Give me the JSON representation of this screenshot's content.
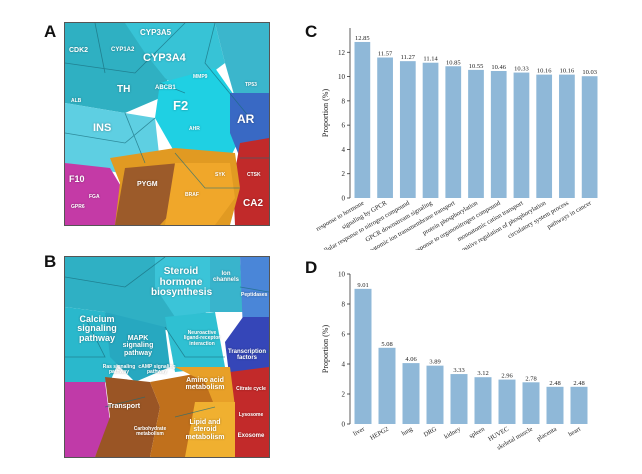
{
  "panels": {
    "a": "A",
    "b": "B",
    "c": "C",
    "d": "D"
  },
  "voronoi_a": {
    "labels": [
      "CYP3A5",
      "CDK2",
      "CYP1A2",
      "CYP3A4",
      "ABCB1",
      "TH",
      "F2",
      "INS",
      "AR",
      "PYGM",
      "F10",
      "CA2",
      "FGA",
      "SYK",
      "GPR6",
      "BRAF",
      "AHR",
      "MMP9",
      "ALB",
      "TP53",
      "CTSK"
    ],
    "colors": [
      "#2fb4c6",
      "#25c6d9",
      "#39d5e8",
      "#5fd2e6",
      "#3a6ec8",
      "#e89a1d",
      "#d0821a",
      "#c22a2a",
      "#c33ca9",
      "#9a5a2a"
    ]
  },
  "voronoi_b": {
    "labels": [
      "Steroid hormone biosynthesis",
      "Ion channels",
      "Calcium signaling pathway",
      "MAPK signaling pathway",
      "Neuroactive ligand-receptor interaction",
      "Peptidases",
      "Transcription factors",
      "Ras signaling pathway",
      "cAMP signaling pathway",
      "Amino acid metabolism",
      "Transport",
      "Carbohydrate metabolism",
      "Lipid and steroid metabolism",
      "Citrate cycle",
      "Lysosome",
      "Exosome"
    ]
  },
  "chart_data": [
    {
      "type": "bar",
      "categories": [
        "response to hormone",
        "signaling by GPCR",
        "cellular response to nitrogen compound",
        "GPCR downstream signaling",
        "monoatomic ion transmembrane transport",
        "protein phosphorylation",
        "cellular response to organonitrogen compound",
        "monoatomic cation transport",
        "positive regulation of phosphorylation",
        "circulatory system process",
        "pathways in cancer"
      ],
      "values": [
        12.85,
        11.57,
        11.27,
        11.14,
        10.85,
        10.55,
        10.46,
        10.33,
        10.16,
        10.16,
        10.03
      ],
      "value_labels": [
        "12.85",
        "11.57",
        "11.27",
        "11.14",
        "10.85",
        "10.55",
        "10.46",
        "10.33",
        "10.16",
        "10.16",
        "10.03"
      ],
      "ylabel": "Proportion (%)",
      "ylim": [
        0,
        14
      ],
      "yticks": [
        0,
        2,
        4,
        6,
        8,
        10,
        12
      ],
      "color": "#8fb8d8"
    },
    {
      "type": "bar",
      "categories": [
        "liver",
        "HEPG2",
        "lung",
        "DRG",
        "kidney",
        "spleen",
        "HUVEC",
        "skeletal muscle",
        "placenta",
        "heart"
      ],
      "values": [
        9.01,
        5.08,
        4.06,
        3.89,
        3.33,
        3.12,
        2.96,
        2.78,
        2.48,
        2.48
      ],
      "value_labels": [
        "9.01",
        "5.08",
        "4.06",
        "3.89",
        "3.33",
        "3.12",
        "2.96",
        "2.78",
        "2.48",
        "2.48"
      ],
      "ylabel": "Proportion (%)",
      "ylim": [
        0,
        10
      ],
      "yticks": [
        0,
        2,
        4,
        6,
        8,
        10
      ],
      "color": "#8fb8d8"
    }
  ]
}
